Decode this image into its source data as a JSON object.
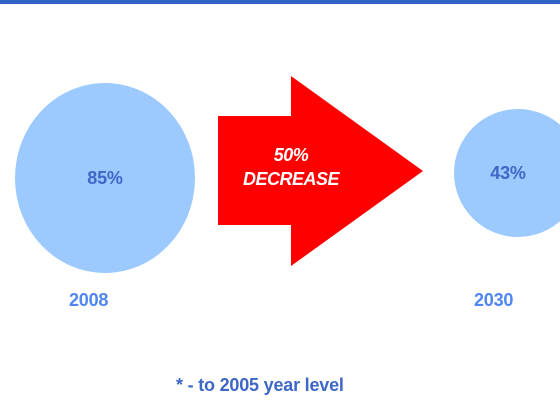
{
  "diagram": {
    "left_value": "85%",
    "left_year": "2008",
    "arrow_line_1": "50%",
    "arrow_line_2": "DECREASE",
    "right_value": "43%",
    "right_year": "2030",
    "footnote": "* - to 2005 year level"
  },
  "colors": {
    "top_rule": "#2f63c8",
    "circle_fill": "#9ccaff",
    "value_text": "#3f67c8",
    "year_text": "#4f86ef",
    "arrow_fill": "#ff0000",
    "arrow_text": "#ffffff"
  }
}
